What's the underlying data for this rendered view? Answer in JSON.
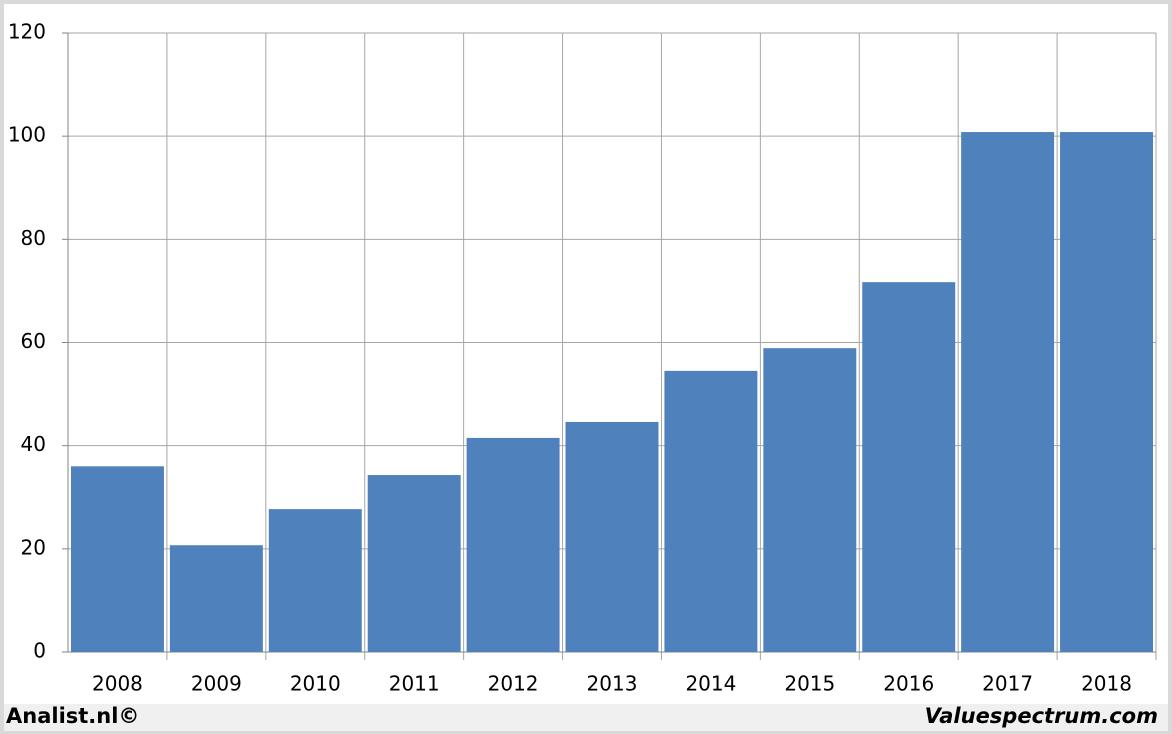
{
  "chart_data": {
    "type": "bar",
    "categories": [
      "2008",
      "2009",
      "2010",
      "2011",
      "2012",
      "2013",
      "2014",
      "2015",
      "2016",
      "2017",
      "2018"
    ],
    "values": [
      36,
      20.7,
      27.7,
      34.3,
      41.5,
      44.6,
      54.5,
      58.9,
      71.7,
      100.8,
      100.8
    ],
    "color": "#4f81bd",
    "ylim": [
      0,
      120
    ],
    "yticks": [
      0,
      20,
      40,
      60,
      80,
      100,
      120
    ],
    "grid": true,
    "source": "Analist.nl©",
    "credit": "Valuespectrum.com"
  }
}
